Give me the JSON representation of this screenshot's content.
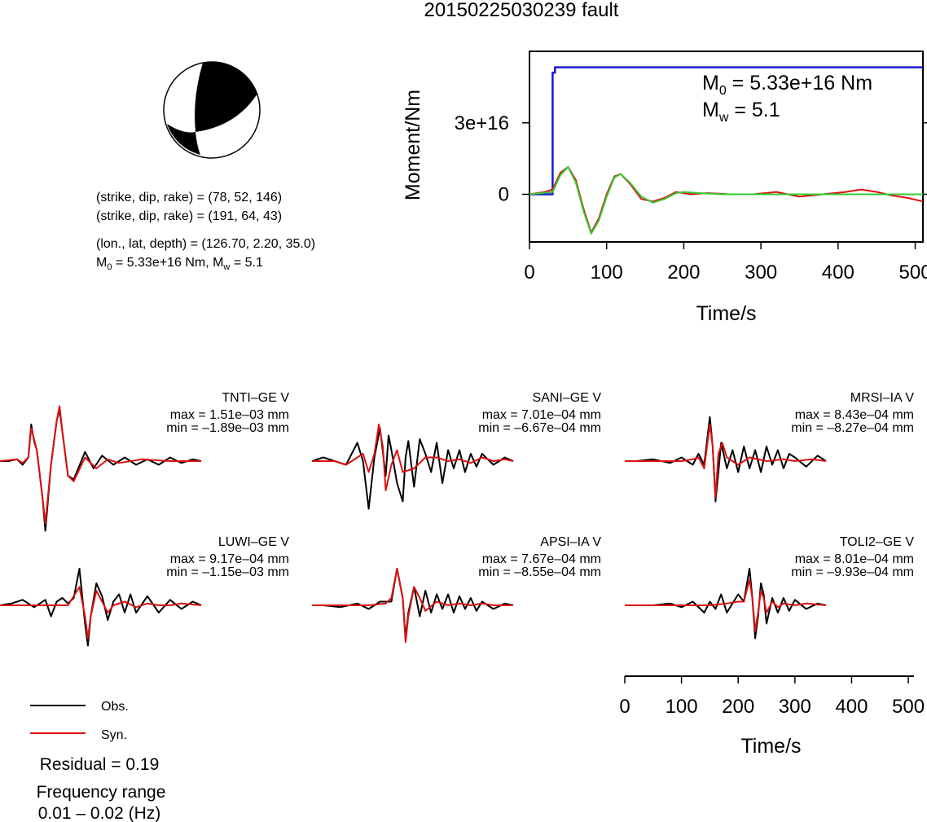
{
  "title": "20150225030239 fault",
  "mechanism": {
    "nodal_plane_1": "(strike, dip, rake) = (78, 52, 146)",
    "nodal_plane_2": "(strike, dip, rake) = (191, 64, 43)",
    "location": "(lon., lat, depth) = (126.70, 2.20, 35.0)",
    "moment_prefix": "M",
    "moment_sub": "0",
    "moment_mid": " = 5.33e+16 Nm, M",
    "mw_sub": "w",
    "mw_value": " = 5.1"
  },
  "legend": {
    "obs_label": "Obs.",
    "syn_label": "Syn.",
    "obs_color": "#000000",
    "syn_color": "#dd1111"
  },
  "residual": "Residual = 0.19",
  "frequency_title": "Frequency range",
  "frequency_value": "0.01 – 0.02 (Hz)",
  "chart_data": [
    {
      "type": "line",
      "name": "moment-rate-function",
      "xlabel": "Time/s",
      "ylabel": "Moment/Nm",
      "xlim": [
        0,
        510
      ],
      "ylim": [
        -2e+16,
        6e+16
      ],
      "xticks": [
        0,
        100,
        200,
        300,
        400,
        500
      ],
      "yticks": [
        {
          "value": 3e+16,
          "label": "3e+16"
        },
        {
          "value": 0,
          "label": "0"
        }
      ],
      "annotation_m0": {
        "prefix": "M",
        "sub": "0",
        "text": " = 5.33e+16 Nm"
      },
      "annotation_mw": {
        "prefix": "M",
        "sub": "w",
        "text": " = 5.1"
      },
      "series": [
        {
          "color": "#1a1acc",
          "x": [
            0,
            30,
            30,
            33,
            33,
            510
          ],
          "y": [
            0,
            0,
            5.1e+16,
            5.1e+16,
            5.33e+16,
            5.33e+16
          ]
        },
        {
          "color": "#dd1111",
          "x": [
            0,
            20,
            30,
            40,
            50,
            60,
            70,
            80,
            90,
            100,
            110,
            118,
            130,
            145,
            160,
            175,
            190,
            210,
            230,
            260,
            290,
            320,
            350,
            380,
            410,
            430,
            450,
            470,
            490,
            510
          ],
          "y": [
            0,
            1000000000000000.0,
            2000000000000000.0,
            9000000000000000.0,
            1.15e+16,
            6000000000000000.0,
            -6000000000000000.0,
            -1.6e+16,
            -1e+16,
            0.0,
            7500000000000000.0,
            8500000000000000.0,
            4500000000000000.0,
            -2000000000000000.0,
            -3000000000000000.0,
            -1500000000000000.0,
            1000000000000000.0,
            0.0,
            500000000000000.0,
            0.0,
            0.0,
            1000000000000000.0,
            -1000000000000000.0,
            0.0,
            1000000000000000.0,
            2000000000000000.0,
            1000000000000000.0,
            -500000000000000.0,
            -1500000000000000.0,
            -3000000000000000.0
          ]
        },
        {
          "color": "#33cc33",
          "x": [
            0,
            30,
            40,
            50,
            60,
            70,
            80,
            90,
            100,
            110,
            118,
            130,
            145,
            160,
            175,
            190,
            200,
            220,
            250,
            300,
            350,
            400,
            450,
            510
          ],
          "y": [
            0,
            1000000000000000.0,
            8000000000000000.0,
            1.15e+16,
            5000000000000000.0,
            -7000000000000000.0,
            -1.65e+16,
            -1.1e+16,
            -1000000000000000.0,
            7000000000000000.0,
            8500000000000000.0,
            5000000000000000.0,
            -1000000000000000.0,
            -3500000000000000.0,
            -2000000000000000.0,
            500000000000000.0,
            1000000000000000.0,
            500000000000000.0,
            0.0,
            0.0,
            0.0,
            0.0,
            0.0,
            0.0
          ]
        }
      ]
    },
    {
      "type": "line",
      "name": "waveform-panels",
      "xlabel": "Time/s",
      "xlim": [
        0,
        510
      ],
      "xticks": [
        0,
        100,
        200,
        300,
        400,
        500
      ],
      "panels": [
        {
          "station": "TNTI–GE V",
          "max": "max = 1.51e–03 mm",
          "min": "min = –1.89e–03 mm",
          "obs": {
            "x": [
              0,
              15,
              30,
              40,
              50,
              55,
              60,
              65,
              75,
              80,
              90,
              100,
              105,
              110,
              120,
              130,
              150,
              165,
              180,
              200,
              220,
              240,
              260,
              280,
              300,
              320,
              340,
              355
            ],
            "y": [
              0,
              0,
              0.05,
              -0.1,
              0.1,
              1.0,
              0.55,
              0.3,
              -1.0,
              -1.9,
              -0.1,
              1.1,
              1.4,
              0.8,
              -0.4,
              -0.5,
              0.25,
              -0.2,
              0.15,
              -0.1,
              0.1,
              -0.1,
              0.05,
              -0.1,
              0.1,
              -0.05,
              0.05,
              0
            ]
          },
          "syn": {
            "x": [
              0,
              30,
              40,
              50,
              55,
              60,
              65,
              75,
              80,
              90,
              100,
              105,
              110,
              120,
              130,
              150,
              170,
              190,
              210,
              250,
              300,
              355
            ],
            "y": [
              0,
              0.05,
              -0.05,
              0.1,
              0.9,
              0.6,
              0.3,
              -1.0,
              -1.7,
              -0.1,
              1.1,
              1.5,
              0.8,
              -0.4,
              -0.55,
              0.1,
              -0.2,
              0.05,
              -0.05,
              0.05,
              0,
              0
            ]
          }
        },
        {
          "station": "SANI–GE V",
          "max": "max = 7.01e–04 mm",
          "min": "min = –6.67e–04 mm",
          "obs": {
            "x": [
              0,
              20,
              40,
              60,
              80,
              90,
              100,
              110,
              120,
              130,
              135,
              140,
              150,
              160,
              165,
              170,
              180,
              190,
              200,
              210,
              220,
              230,
              240,
              250,
              260,
              270,
              280,
              290,
              300,
              320,
              340,
              355
            ],
            "y": [
              0,
              0.1,
              0,
              -0.1,
              0.5,
              0.0,
              -1.3,
              0.1,
              0.9,
              -0.4,
              0.7,
              0.3,
              -0.6,
              -1.1,
              0.1,
              0.55,
              -0.7,
              0.6,
              0.2,
              -0.3,
              0.5,
              -0.6,
              0.3,
              -0.2,
              0.3,
              -0.3,
              0.2,
              -0.15,
              0.2,
              -0.1,
              0.1,
              0
            ]
          },
          "syn": {
            "x": [
              0,
              40,
              60,
              80,
              90,
              100,
              110,
              118,
              125,
              130,
              140,
              150,
              160,
              180,
              200,
              220,
              240,
              260,
              280,
              300,
              320,
              340,
              355
            ],
            "y": [
              0,
              0,
              -0.1,
              0.1,
              0.2,
              -0.3,
              0.2,
              1.0,
              0.4,
              -0.8,
              -0.1,
              0.3,
              -0.3,
              -0.2,
              0.1,
              0.1,
              0.0,
              0.05,
              -0.05,
              0.1,
              0,
              0.05,
              0
            ]
          }
        },
        {
          "station": "MRSI–IA V",
          "max": "max = 8.43e–04 mm",
          "min": "min = –8.27e–04 mm",
          "obs": {
            "x": [
              0,
              20,
              50,
              80,
              100,
              120,
              130,
              140,
              150,
              155,
              160,
              165,
              170,
              180,
              190,
              200,
              210,
              220,
              230,
              240,
              250,
              260,
              270,
              280,
              290,
              300,
              320,
              340,
              355
            ],
            "y": [
              0,
              0,
              0.05,
              -0.05,
              0.1,
              -0.1,
              0.2,
              -0.1,
              1.2,
              0.4,
              -1.1,
              -0.3,
              0.5,
              -0.2,
              0.3,
              -0.3,
              0.4,
              -0.2,
              0.3,
              -0.3,
              0.4,
              -0.1,
              0.3,
              -0.2,
              0.2,
              0.1,
              -0.15,
              0.15,
              0
            ]
          },
          "syn": {
            "x": [
              0,
              50,
              100,
              120,
              130,
              140,
              150,
              155,
              160,
              165,
              172,
              180,
              200,
              220,
              250,
              280,
              300,
              330,
              355
            ],
            "y": [
              0,
              0,
              0,
              0.05,
              0.1,
              -0.2,
              1.0,
              0.4,
              -1.0,
              0.2,
              0.5,
              0.1,
              -0.1,
              0.1,
              0.0,
              0.05,
              0.0,
              0.05,
              0
            ]
          }
        },
        {
          "station": "LUWI–GE V",
          "max": "max = 9.17e–04 mm",
          "min": "min = –1.15e–03 mm",
          "obs": {
            "x": [
              0,
              20,
              40,
              60,
              80,
              90,
              100,
              110,
              120,
              130,
              140,
              150,
              155,
              160,
              170,
              180,
              190,
              200,
              210,
              220,
              230,
              240,
              260,
              280,
              300,
              320,
              340,
              355
            ],
            "y": [
              0,
              0.05,
              0.15,
              -0.05,
              0.15,
              -0.3,
              0.1,
              0.2,
              0.05,
              0.2,
              1.0,
              -0.5,
              -1.1,
              -0.3,
              0.6,
              0.25,
              -0.4,
              0.1,
              0.3,
              -0.2,
              0.3,
              -0.2,
              0.25,
              -0.2,
              0.15,
              -0.1,
              0.1,
              0
            ]
          },
          "syn": {
            "x": [
              0,
              50,
              100,
              120,
              140,
              150,
              155,
              160,
              170,
              180,
              190,
              200,
              220,
              240,
              260,
              280,
              300,
              320,
              355
            ],
            "y": [
              0,
              0,
              0,
              0,
              0.5,
              -0.3,
              -0.9,
              -0.3,
              0.4,
              0.1,
              -0.2,
              0.0,
              0.1,
              -0.05,
              0.05,
              0.0,
              0.0,
              0.05,
              0
            ]
          }
        },
        {
          "station": "APSI–IA V",
          "max": "max = 7.67e–04 mm",
          "min": "min = –8.55e–04 mm",
          "obs": {
            "x": [
              0,
              20,
              50,
              80,
              100,
              120,
              140,
              150,
              160,
              165,
              170,
              180,
              185,
              190,
              200,
              210,
              220,
              230,
              240,
              250,
              260,
              270,
              280,
              290,
              300,
              320,
              340,
              355
            ],
            "y": [
              0,
              0,
              -0.05,
              0.05,
              -0.1,
              0.1,
              0.1,
              1.0,
              0.2,
              -0.9,
              -0.2,
              0.5,
              0.1,
              -0.3,
              0.4,
              -0.2,
              0.3,
              -0.1,
              0.3,
              -0.2,
              0.25,
              -0.1,
              0.2,
              -0.15,
              0.1,
              -0.1,
              0.05,
              0
            ]
          },
          "syn": {
            "x": [
              0,
              50,
              100,
              130,
              140,
              150,
              160,
              165,
              170,
              180,
              190,
              200,
              220,
              240,
              260,
              280,
              300,
              320,
              355
            ],
            "y": [
              0,
              0,
              0,
              0.05,
              0.2,
              1.0,
              0.2,
              -1.0,
              -0.3,
              0.5,
              0.2,
              -0.15,
              0.1,
              0.0,
              0.05,
              0.0,
              0.05,
              0.0,
              0
            ]
          }
        },
        {
          "station": "TOLI2–GE V",
          "max": "max = 8.01e–04 mm",
          "min": "min = –9.93e–04 mm",
          "obs": {
            "x": [
              0,
              20,
              50,
              80,
              100,
              120,
              140,
              150,
              160,
              170,
              180,
              200,
              210,
              220,
              225,
              230,
              235,
              240,
              245,
              250,
              260,
              270,
              280,
              290,
              300,
              320,
              340,
              355
            ],
            "y": [
              0,
              0,
              0,
              0.05,
              -0.05,
              0.1,
              -0.2,
              0.1,
              -0.1,
              0.3,
              -0.2,
              0.3,
              0.1,
              1.0,
              0.2,
              -0.9,
              -0.3,
              0.6,
              0.3,
              -0.5,
              0.2,
              -0.2,
              0.2,
              -0.15,
              0.15,
              -0.1,
              0.05,
              0
            ]
          },
          "syn": {
            "x": [
              0,
              50,
              100,
              150,
              180,
              200,
              210,
              220,
              225,
              230,
              235,
              240,
              245,
              250,
              260,
              270,
              280,
              300,
              320,
              355
            ],
            "y": [
              0,
              0,
              0,
              0,
              0.05,
              0.1,
              0.1,
              0.7,
              0.2,
              -0.7,
              -0.2,
              0.4,
              0.2,
              -0.2,
              0.1,
              -0.05,
              0.05,
              0.0,
              0.05,
              0
            ]
          }
        }
      ]
    }
  ]
}
